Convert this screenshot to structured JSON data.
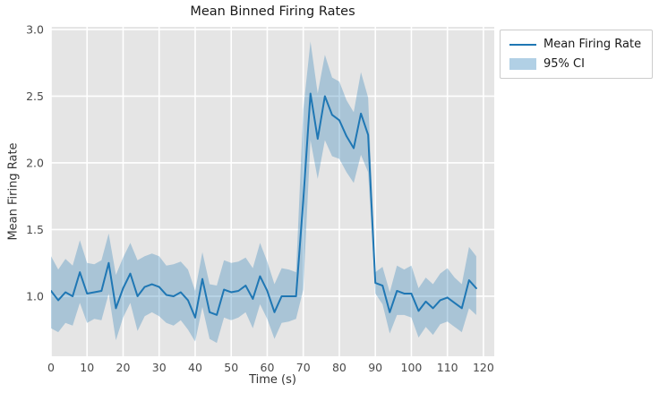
{
  "chart_data": {
    "type": "line",
    "title": "Mean Binned Firing Rates",
    "xlabel": "Time (s)",
    "ylabel": "Mean Firing Rate",
    "legend": {
      "position": "outside-upper-right",
      "entries": [
        "Mean Firing Rate",
        "95% CI"
      ]
    },
    "x": [
      0,
      2,
      4,
      6,
      8,
      10,
      12,
      14,
      16,
      18,
      20,
      22,
      24,
      26,
      28,
      30,
      32,
      34,
      36,
      38,
      40,
      42,
      44,
      46,
      48,
      50,
      52,
      54,
      56,
      58,
      60,
      62,
      64,
      66,
      68,
      70,
      72,
      74,
      76,
      78,
      80,
      82,
      84,
      86,
      88,
      90,
      92,
      94,
      96,
      98,
      100,
      102,
      104,
      106,
      108,
      110,
      112,
      114,
      116,
      118
    ],
    "series": [
      {
        "name": "Mean Firing Rate",
        "values": [
          1.04,
          0.97,
          1.03,
          1.0,
          1.18,
          1.02,
          1.03,
          1.04,
          1.25,
          0.91,
          1.06,
          1.17,
          1.0,
          1.07,
          1.09,
          1.07,
          1.01,
          1.0,
          1.03,
          0.97,
          0.84,
          1.13,
          0.88,
          0.86,
          1.05,
          1.03,
          1.04,
          1.08,
          0.98,
          1.15,
          1.04,
          0.88,
          1.0,
          1.0,
          1.0,
          1.72,
          2.52,
          2.18,
          2.5,
          2.36,
          2.32,
          2.2,
          2.11,
          2.37,
          2.21,
          1.1,
          1.08,
          0.88,
          1.04,
          1.02,
          1.02,
          0.89,
          0.96,
          0.91,
          0.97,
          0.99,
          0.95,
          0.91,
          1.12,
          1.06
        ]
      }
    ],
    "ci": {
      "label": "95% CI",
      "lower": [
        0.76,
        0.73,
        0.8,
        0.78,
        0.95,
        0.8,
        0.83,
        0.82,
        1.02,
        0.67,
        0.84,
        0.95,
        0.74,
        0.85,
        0.88,
        0.85,
        0.8,
        0.78,
        0.82,
        0.75,
        0.66,
        0.92,
        0.68,
        0.65,
        0.84,
        0.82,
        0.84,
        0.88,
        0.76,
        0.94,
        0.83,
        0.68,
        0.8,
        0.81,
        0.83,
        1.05,
        2.17,
        1.88,
        2.17,
        2.05,
        2.03,
        1.93,
        1.85,
        2.06,
        1.93,
        1.02,
        0.94,
        0.72,
        0.86,
        0.86,
        0.84,
        0.69,
        0.77,
        0.71,
        0.79,
        0.81,
        0.77,
        0.73,
        0.91,
        0.86
      ],
      "upper": [
        1.3,
        1.2,
        1.28,
        1.23,
        1.42,
        1.25,
        1.24,
        1.27,
        1.47,
        1.16,
        1.29,
        1.4,
        1.27,
        1.3,
        1.32,
        1.3,
        1.23,
        1.24,
        1.26,
        1.2,
        1.04,
        1.33,
        1.09,
        1.08,
        1.27,
        1.25,
        1.26,
        1.29,
        1.21,
        1.4,
        1.26,
        1.09,
        1.21,
        1.2,
        1.18,
        2.4,
        2.91,
        2.52,
        2.81,
        2.64,
        2.61,
        2.47,
        2.38,
        2.68,
        2.49,
        1.18,
        1.22,
        1.03,
        1.23,
        1.2,
        1.23,
        1.06,
        1.14,
        1.09,
        1.17,
        1.21,
        1.14,
        1.09,
        1.37,
        1.3
      ]
    },
    "xticks": [
      0,
      10,
      20,
      30,
      40,
      50,
      60,
      70,
      80,
      90,
      100,
      110,
      120
    ],
    "yticks": [
      1.0,
      1.5,
      2.0,
      2.5,
      3.0
    ],
    "xlim": [
      0,
      123
    ],
    "ylim": [
      0.55,
      3.02
    ],
    "grid": true,
    "colors": {
      "line": "#1f77b4",
      "band": "#1f77b4",
      "band_opacity": 0.3,
      "plot_bg": "#e5e5e5",
      "grid": "#ffffff",
      "tick_label": "#4a4a4a"
    }
  }
}
